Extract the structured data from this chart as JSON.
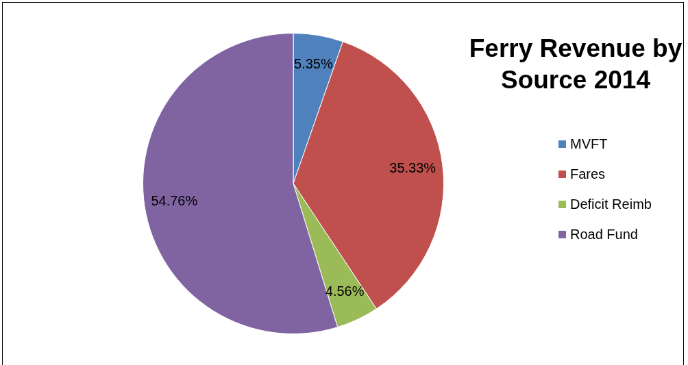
{
  "chart_data": {
    "type": "pie",
    "title": "Ferry Revenue by Source 2014",
    "categories": [
      "MVFT",
      "Fares",
      "Deficit Reimb",
      "Road Fund"
    ],
    "values": [
      5.35,
      35.33,
      4.56,
      54.76
    ],
    "colors": [
      "#4f81bd",
      "#c0504d",
      "#9bbb59",
      "#8064a2"
    ],
    "value_labels": [
      "5.35%",
      "35.33%",
      "4.56%",
      "54.76%"
    ],
    "legend": "right"
  }
}
